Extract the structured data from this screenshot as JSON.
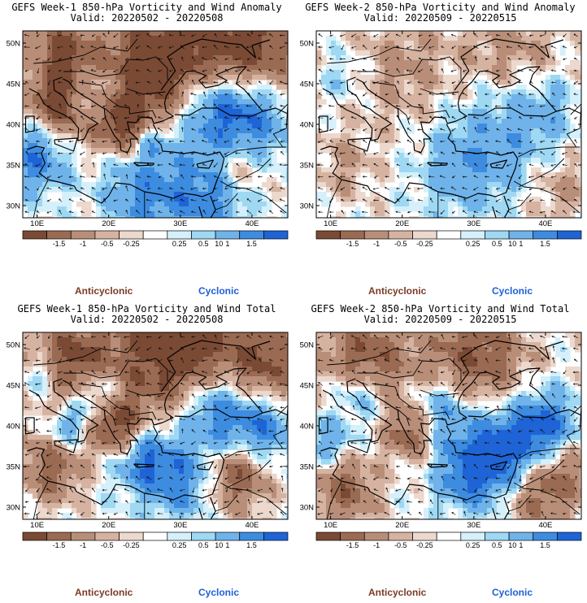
{
  "panels": [
    {
      "title": "GEFS Week-1 850-hPa Vorticity and Wind Anomaly",
      "valid": "Valid: 20220502 - 20220508",
      "kind": "anomaly",
      "seed": 11
    },
    {
      "title": "GEFS Week-2 850-hPa Vorticity and Wind Anomaly",
      "valid": "Valid: 20220509 - 20220515",
      "kind": "anomaly-weak",
      "seed": 23
    },
    {
      "title": "GEFS Week-1 850-hPa Vorticity and Wind Total",
      "valid": "Valid: 20220502 - 20220508",
      "kind": "total",
      "seed": 37
    },
    {
      "title": "GEFS Week-2 850-hPa Vorticity and Wind Total",
      "valid": "Valid: 20220509 - 20220515",
      "kind": "total2",
      "seed": 51
    }
  ],
  "axes": {
    "lat_labels": [
      "50N",
      "45N",
      "40N",
      "35N",
      "30N"
    ],
    "lon_labels": [
      "10E",
      "20E",
      "30E",
      "40E"
    ]
  },
  "colorbar": {
    "ticks": [
      "-1.5",
      "-1",
      "-0.5",
      "-0.25",
      "0.25",
      "0.5",
      "1",
      "1.5"
    ],
    "unit": "10",
    "colors": [
      "#7a4a35",
      "#9a6a52",
      "#b98e78",
      "#d6b3a1",
      "#ecd8cd",
      "#ffffff",
      "#d5f0fb",
      "#9ed8f3",
      "#6fb3ea",
      "#3d8ce0",
      "#1f64d6"
    ],
    "anticyclonic_label": "Anticyclonic",
    "cyclonic_label": "Cyclonic"
  }
}
